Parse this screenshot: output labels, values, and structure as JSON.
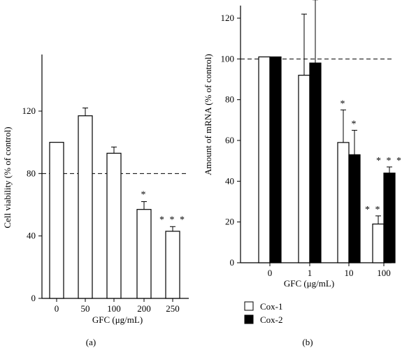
{
  "chart_data": [
    {
      "panel": "(a)",
      "type": "bar",
      "xlabel": "GFC (μg/mL)",
      "ylabel": "Cell viability (% of control)",
      "categories": [
        "0",
        "50",
        "100",
        "200",
        "250"
      ],
      "values": [
        100,
        117,
        93,
        57,
        43
      ],
      "errors": [
        0,
        5,
        4,
        5,
        3
      ],
      "significance": [
        "",
        "",
        "",
        "*",
        "***"
      ],
      "reference_line": 80,
      "ylim": [
        0,
        150
      ],
      "yticks": [
        "0",
        "40",
        "80",
        "120"
      ],
      "grid": false,
      "bar_color": "#ffffff"
    },
    {
      "panel": "(b)",
      "type": "bar",
      "xlabel": "GFC (μg/mL)",
      "ylabel": "Amount of mRNA (% of control)",
      "categories": [
        "0",
        "1",
        "10",
        "100"
      ],
      "series": [
        {
          "name": "Cox-1",
          "values": [
            101,
            92,
            59,
            19
          ],
          "errors": [
            0,
            30,
            16,
            4
          ],
          "significance": [
            "",
            "",
            "*",
            "***"
          ],
          "color": "#ffffff"
        },
        {
          "name": "Cox-2",
          "values": [
            101,
            98,
            53,
            44
          ],
          "errors": [
            0,
            31,
            12,
            3
          ],
          "significance": [
            "",
            "",
            "*",
            "***"
          ],
          "color": "#000000"
        }
      ],
      "reference_line": 100,
      "ylim": [
        0,
        128
      ],
      "yticks": [
        "0",
        "20",
        "40",
        "60",
        "80",
        "100",
        "120"
      ],
      "grid": false,
      "legend_position": "bottom-left"
    }
  ]
}
